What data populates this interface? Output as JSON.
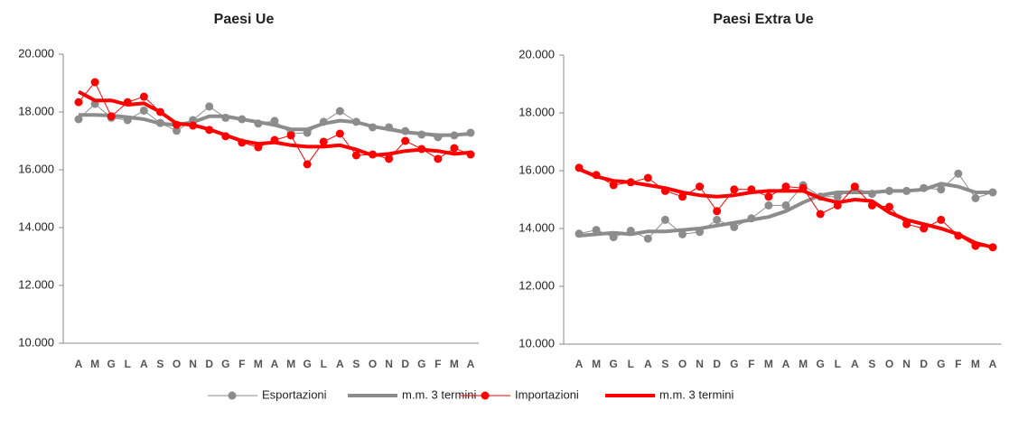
{
  "chart_data": [
    {
      "type": "line",
      "title": "Paesi Ue",
      "categories": [
        "A",
        "M",
        "G",
        "L",
        "A",
        "S",
        "O",
        "N",
        "D",
        "G",
        "F",
        "M",
        "A",
        "M",
        "G",
        "L",
        "A",
        "S",
        "O",
        "N",
        "D",
        "G",
        "F",
        "M",
        "A"
      ],
      "ylim": [
        10000,
        20000
      ],
      "yticks": [
        {
          "value": 10000,
          "label": "10.000"
        },
        {
          "value": 12000,
          "label": "12.000"
        },
        {
          "value": 14000,
          "label": "14.000"
        },
        {
          "value": 16000,
          "label": "16.000"
        },
        {
          "value": 18000,
          "label": "18.000"
        },
        {
          "value": 20000,
          "label": "20.000"
        }
      ],
      "series": [
        {
          "name": "Esportazioni",
          "color": "#8c8c8c",
          "marker": true,
          "values": [
            17750,
            18280,
            17800,
            17720,
            18050,
            17620,
            17350,
            17720,
            18190,
            17800,
            17750,
            17600,
            17690,
            17250,
            17280,
            17660,
            18030,
            17660,
            17470,
            17470,
            17340,
            17220,
            17130,
            17190,
            17280
          ]
        },
        {
          "name": "m.m. 3 termini",
          "color": "#8c8c8c",
          "marker": false,
          "values": [
            17900,
            17900,
            17880,
            17820,
            17750,
            17600,
            17550,
            17650,
            17850,
            17850,
            17750,
            17650,
            17550,
            17400,
            17400,
            17600,
            17700,
            17650,
            17500,
            17400,
            17300,
            17250,
            17200,
            17200,
            17250
          ]
        },
        {
          "name": "Importazioni",
          "color": "#ff0000",
          "marker": true,
          "values": [
            18340,
            19030,
            17850,
            18340,
            18530,
            18000,
            17560,
            17530,
            17380,
            17160,
            16940,
            16780,
            17030,
            17190,
            16190,
            16970,
            17250,
            16500,
            16530,
            16380,
            17000,
            16720,
            16380,
            16750,
            16530
          ]
        },
        {
          "name": "m.m. 3 termini",
          "color": "#ff0000",
          "marker": false,
          "values": [
            18700,
            18400,
            18400,
            18250,
            18300,
            18000,
            17600,
            17550,
            17400,
            17200,
            17000,
            16900,
            16950,
            16850,
            16800,
            16800,
            16850,
            16700,
            16500,
            16550,
            16650,
            16700,
            16650,
            16550,
            16600
          ]
        }
      ]
    },
    {
      "type": "line",
      "title": "Paesi Extra Ue",
      "categories": [
        "A",
        "M",
        "G",
        "L",
        "A",
        "S",
        "O",
        "N",
        "D",
        "G",
        "F",
        "M",
        "A",
        "M",
        "G",
        "L",
        "A",
        "S",
        "O",
        "N",
        "D",
        "G",
        "F",
        "M",
        "A"
      ],
      "ylim": [
        10000,
        20000
      ],
      "yticks": [
        {
          "value": 10000,
          "label": "10.000"
        },
        {
          "value": 12000,
          "label": "12.000"
        },
        {
          "value": 14000,
          "label": "14.000"
        },
        {
          "value": 16000,
          "label": "16.000"
        },
        {
          "value": 18000,
          "label": "18.000"
        },
        {
          "value": 20000,
          "label": "20.000"
        }
      ],
      "series": [
        {
          "color": "#8c8c8c",
          "marker": true,
          "values": [
            13820,
            13950,
            13700,
            13920,
            13650,
            14300,
            13800,
            13880,
            14300,
            14050,
            14350,
            14800,
            14800,
            15500,
            15100,
            15100,
            15400,
            15200,
            15300,
            15300,
            15400,
            15350,
            15900,
            15050,
            15250
          ]
        },
        {
          "color": "#8c8c8c",
          "marker": false,
          "values": [
            13750,
            13800,
            13850,
            13800,
            13900,
            13900,
            13950,
            14000,
            14100,
            14200,
            14300,
            14400,
            14600,
            14900,
            15150,
            15250,
            15250,
            15250,
            15300,
            15300,
            15350,
            15550,
            15450,
            15250,
            15250
          ]
        },
        {
          "color": "#ff0000",
          "marker": true,
          "values": [
            16100,
            15850,
            15500,
            15600,
            15750,
            15300,
            15100,
            15450,
            14600,
            15350,
            15350,
            15100,
            15450,
            15400,
            14500,
            14800,
            15450,
            14800,
            14750,
            14150,
            14000,
            14300,
            13750,
            13400,
            13350
          ]
        },
        {
          "color": "#ff0000",
          "marker": false,
          "values": [
            16050,
            15800,
            15650,
            15600,
            15500,
            15400,
            15250,
            15150,
            15100,
            15150,
            15250,
            15300,
            15300,
            15300,
            15050,
            14900,
            15000,
            14950,
            14550,
            14300,
            14150,
            14000,
            13800,
            13500,
            13350
          ]
        }
      ]
    }
  ]
}
